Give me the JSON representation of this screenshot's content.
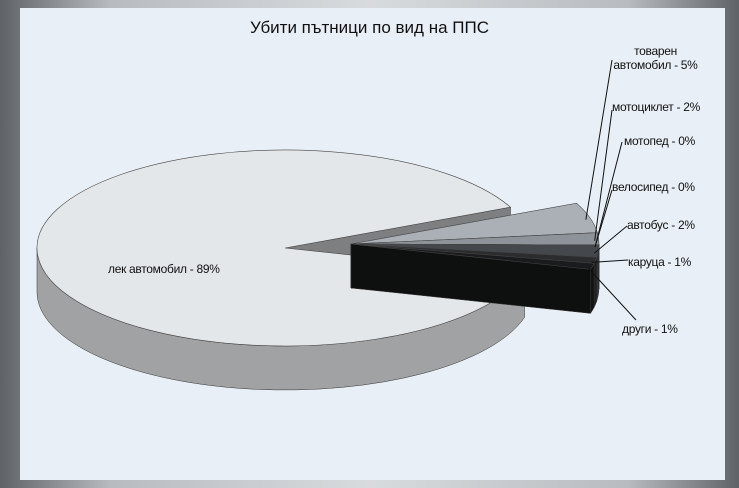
{
  "chart_data": {
    "type": "pie",
    "title": "Убити пътници по вид на ППС",
    "values": [
      89,
      5,
      2,
      0,
      0,
      2,
      1,
      1
    ],
    "value_labels": [
      "лек автомобил - 89%",
      "товарен автомобил - 5%",
      "мотоциклет - 2%",
      "мотопед - 0%",
      "велосипед - 0%",
      "автобус - 2%",
      "каруца - 1%",
      "други - 1%"
    ],
    "colors": [
      "#e4e7ea",
      "#aab0b5",
      "#8d9399",
      "#6f757b",
      "#5a5f64",
      "#44484c",
      "#2a2c2e",
      "#1a1b1c"
    ]
  }
}
